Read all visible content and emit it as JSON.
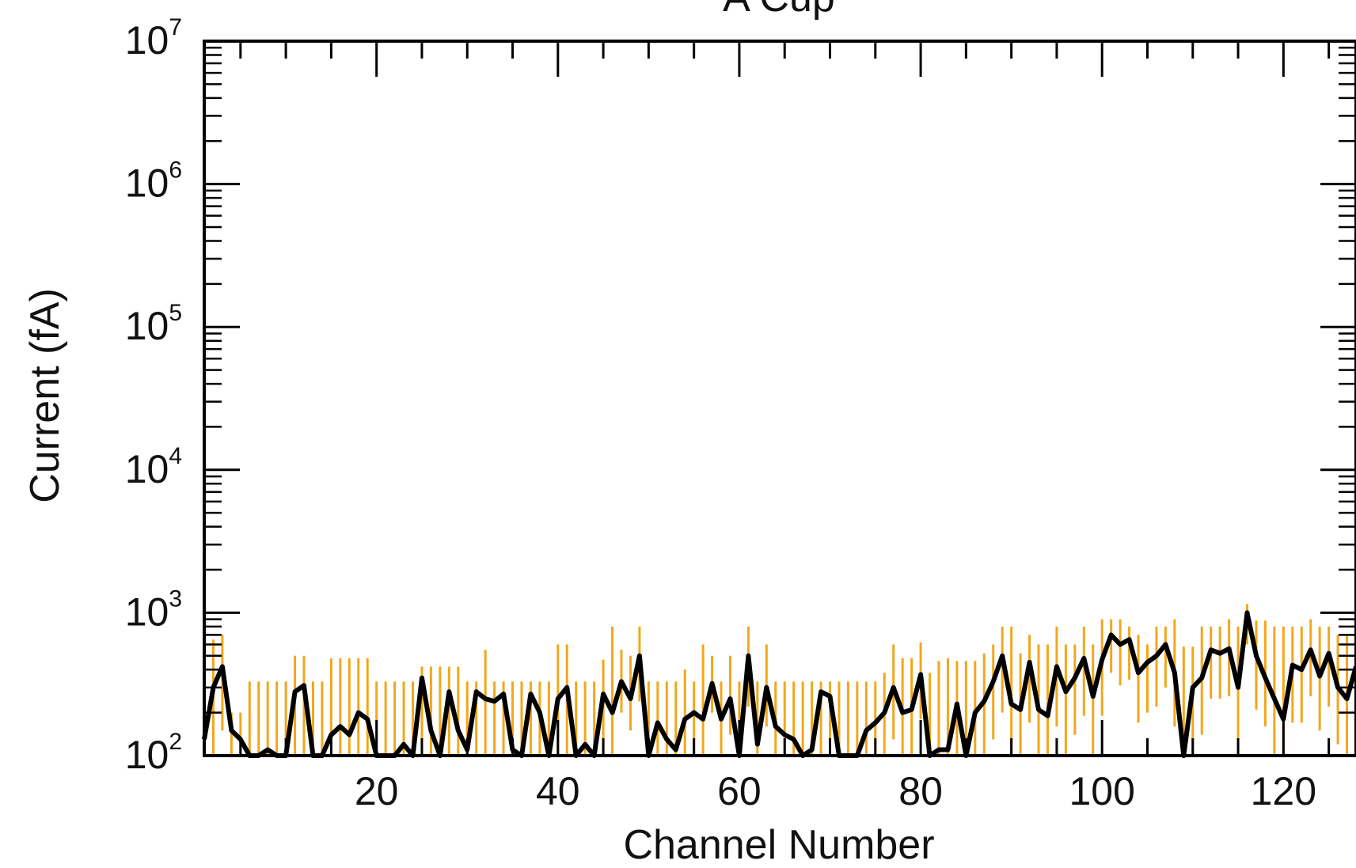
{
  "chart_data": {
    "type": "line",
    "title": "A Cup",
    "xlabel": "Channel Number",
    "ylabel": "Current (fA)",
    "xlim": [
      1,
      128
    ],
    "ylim": [
      100,
      10000000
    ],
    "yscale": "log",
    "grid": false,
    "x_ticks": [
      20,
      40,
      60,
      80,
      100,
      120
    ],
    "y_ticks": [
      {
        "base": "10",
        "exp": "2",
        "value": 100
      },
      {
        "base": "10",
        "exp": "3",
        "value": 1000
      },
      {
        "base": "10",
        "exp": "4",
        "value": 10000
      },
      {
        "base": "10",
        "exp": "5",
        "value": 100000
      },
      {
        "base": "10",
        "exp": "6",
        "value": 1000000
      },
      {
        "base": "10",
        "exp": "7",
        "value": 10000000
      }
    ],
    "colors": {
      "line": "#000000",
      "error_bars": "#f2a71b",
      "axes": "#000000"
    },
    "series": [
      {
        "x": [
          1,
          2,
          3,
          4,
          5,
          6,
          7,
          8,
          9,
          10,
          11,
          12,
          13,
          14,
          15,
          16,
          17,
          18,
          19,
          20,
          21,
          22,
          23,
          24,
          25,
          26,
          27,
          28,
          29,
          30,
          31,
          32,
          33,
          34,
          35,
          36,
          37,
          38,
          39,
          40,
          41,
          42,
          43,
          44,
          45,
          46,
          47,
          48,
          49,
          50,
          51,
          52,
          53,
          54,
          55,
          56,
          57,
          58,
          59,
          60,
          61,
          62,
          63,
          64,
          65,
          66,
          67,
          68,
          69,
          70,
          71,
          72,
          73,
          74,
          75,
          76,
          77,
          78,
          79,
          80,
          81,
          82,
          83,
          84,
          85,
          86,
          87,
          88,
          89,
          90,
          91,
          92,
          93,
          94,
          95,
          96,
          97,
          98,
          99,
          100,
          101,
          102,
          103,
          104,
          105,
          106,
          107,
          108,
          109,
          110,
          111,
          112,
          113,
          114,
          115,
          116,
          117,
          118,
          119,
          120,
          121,
          122,
          123,
          124,
          125,
          126,
          127,
          128
        ],
        "y": [
          130,
          300,
          420,
          150,
          130,
          100,
          100,
          110,
          100,
          100,
          280,
          310,
          100,
          100,
          140,
          160,
          140,
          200,
          180,
          100,
          100,
          100,
          120,
          100,
          350,
          150,
          100,
          280,
          150,
          110,
          280,
          250,
          240,
          270,
          110,
          100,
          270,
          200,
          100,
          250,
          300,
          100,
          120,
          100,
          270,
          200,
          330,
          250,
          500,
          100,
          170,
          130,
          110,
          180,
          200,
          180,
          320,
          180,
          250,
          100,
          500,
          120,
          300,
          160,
          140,
          130,
          100,
          110,
          280,
          260,
          100,
          100,
          100,
          150,
          170,
          200,
          300,
          200,
          210,
          370,
          100,
          110,
          110,
          230,
          100,
          200,
          240,
          330,
          500,
          230,
          210,
          450,
          210,
          190,
          420,
          280,
          350,
          480,
          260,
          470,
          700,
          600,
          650,
          380,
          450,
          500,
          600,
          380,
          100,
          300,
          350,
          550,
          520,
          560,
          300,
          1000,
          500,
          350,
          250,
          180,
          430,
          400,
          550,
          360,
          520,
          300,
          250,
          420
        ],
        "err_hi": [
          700,
          650,
          700,
          200,
          200,
          330,
          330,
          330,
          330,
          330,
          500,
          500,
          330,
          330,
          480,
          480,
          480,
          480,
          480,
          330,
          330,
          330,
          330,
          330,
          420,
          420,
          420,
          420,
          420,
          330,
          330,
          550,
          330,
          330,
          330,
          330,
          330,
          330,
          330,
          600,
          600,
          330,
          330,
          330,
          470,
          800,
          550,
          500,
          800,
          330,
          330,
          330,
          330,
          400,
          330,
          600,
          500,
          330,
          500,
          330,
          800,
          330,
          600,
          330,
          330,
          330,
          330,
          330,
          330,
          330,
          330,
          330,
          330,
          330,
          330,
          380,
          600,
          480,
          480,
          620,
          380,
          460,
          480,
          460,
          460,
          460,
          520,
          600,
          800,
          800,
          520,
          700,
          600,
          600,
          800,
          600,
          600,
          800,
          600,
          900,
          900,
          900,
          800,
          700,
          600,
          800,
          800,
          900,
          580,
          580,
          800,
          800,
          800,
          900,
          800,
          1150,
          880,
          880,
          800,
          800,
          800,
          800,
          900,
          800,
          800,
          700,
          700,
          700
        ],
        "err_lo": [
          100,
          100,
          150,
          100,
          100,
          100,
          100,
          100,
          100,
          100,
          100,
          100,
          100,
          100,
          100,
          100,
          100,
          100,
          100,
          100,
          100,
          100,
          100,
          100,
          100,
          100,
          100,
          100,
          100,
          100,
          100,
          100,
          100,
          100,
          100,
          100,
          100,
          100,
          100,
          100,
          100,
          100,
          100,
          100,
          100,
          100,
          200,
          150,
          240,
          100,
          100,
          100,
          100,
          100,
          100,
          100,
          200,
          100,
          140,
          100,
          220,
          100,
          160,
          100,
          100,
          100,
          100,
          100,
          100,
          100,
          100,
          100,
          100,
          100,
          100,
          100,
          130,
          100,
          100,
          180,
          100,
          100,
          100,
          100,
          100,
          100,
          100,
          130,
          200,
          100,
          100,
          170,
          100,
          100,
          160,
          100,
          140,
          190,
          100,
          190,
          380,
          310,
          340,
          170,
          200,
          220,
          300,
          160,
          100,
          100,
          140,
          250,
          250,
          260,
          130,
          600,
          210,
          160,
          100,
          100,
          170,
          170,
          260,
          150,
          220,
          120,
          100,
          180
        ]
      }
    ]
  }
}
